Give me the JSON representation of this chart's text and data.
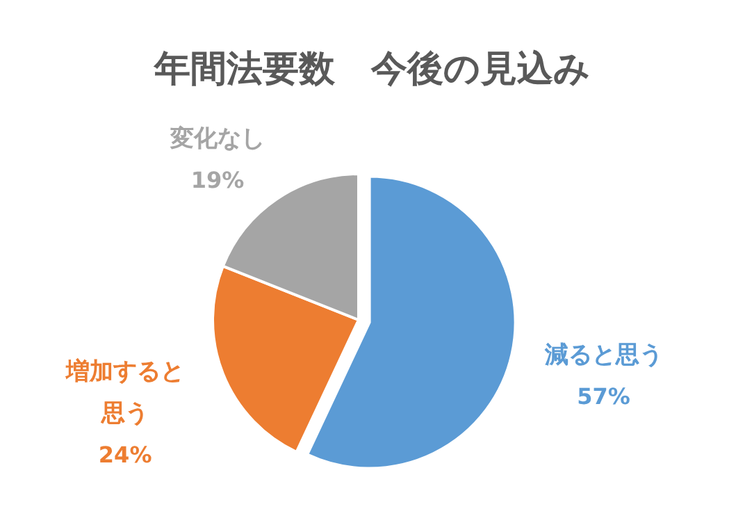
{
  "chart_data": {
    "type": "pie",
    "title": "年間法要数　今後の見込み",
    "categories": [
      "減ると思う",
      "増加すると思う",
      "変化なし"
    ],
    "values": [
      57,
      24,
      19
    ],
    "colors": [
      "#5b9bd5",
      "#ed7d31",
      "#a5a5a5"
    ],
    "value_labels": [
      "57%",
      "24%",
      "19%"
    ]
  }
}
